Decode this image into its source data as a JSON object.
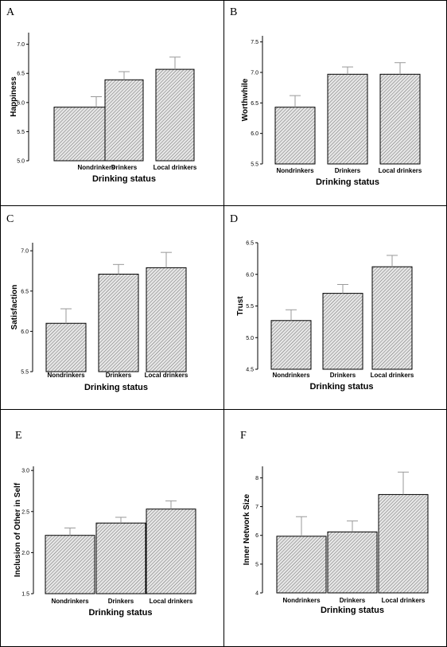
{
  "chart_data": [
    {
      "type": "bar",
      "panel_label": "A",
      "categories": [
        "Nondrinkers",
        "Drinkers",
        "Local drinkers"
      ],
      "values": [
        5.92,
        6.39,
        6.57
      ],
      "error_upper": [
        6.1,
        6.53,
        6.78
      ],
      "xlabel": "Drinking status",
      "ylabel": "Happiness",
      "ylim": [
        5.0,
        7.2
      ],
      "yticks": [
        5.0,
        5.5,
        6.0,
        6.5,
        7.0
      ],
      "ytick_labels": [
        "5.0",
        "5.5",
        "6.0",
        "6.5",
        "7.0"
      ]
    },
    {
      "type": "bar",
      "panel_label": "B",
      "categories": [
        "Nondrinkers",
        "Drinkers",
        "Local drinkers"
      ],
      "values": [
        6.43,
        6.97,
        6.97
      ],
      "error_upper": [
        6.62,
        7.09,
        7.16
      ],
      "xlabel": "Drinking status",
      "ylabel": "Worthwhile",
      "ylim": [
        5.5,
        7.6
      ],
      "yticks": [
        5.5,
        6.0,
        6.5,
        7.0,
        7.5
      ],
      "ytick_labels": [
        "5.5",
        "6.0",
        "6.5",
        "7.0",
        "7.5"
      ]
    },
    {
      "type": "bar",
      "panel_label": "C",
      "categories": [
        "Nondrinkers",
        "Drinkers",
        "Local drinkers"
      ],
      "values": [
        6.1,
        6.71,
        6.79
      ],
      "error_upper": [
        6.28,
        6.83,
        6.98
      ],
      "xlabel": "Drinking status",
      "ylabel": "Satisfaction",
      "ylim": [
        5.5,
        7.1
      ],
      "yticks": [
        5.5,
        6.0,
        6.5,
        7.0
      ],
      "ytick_labels": [
        "5.5",
        "6.0",
        "6.5",
        "7.0"
      ]
    },
    {
      "type": "bar",
      "panel_label": "D",
      "categories": [
        "Nondrinkers",
        "Drinkers",
        "Local drinkers"
      ],
      "values": [
        5.27,
        5.7,
        6.12
      ],
      "error_upper": [
        5.44,
        5.84,
        6.3
      ],
      "xlabel": "Drinking status",
      "ylabel": "Trust",
      "ylim": [
        4.5,
        6.5
      ],
      "yticks": [
        4.5,
        5.0,
        5.5,
        6.0,
        6.5
      ],
      "ytick_labels": [
        "4.5",
        "5.0",
        "5.5",
        "6.0",
        "6.5"
      ]
    },
    {
      "type": "bar",
      "panel_label": "E",
      "categories": [
        "Nondrinkers",
        "Drinkers",
        "Local drinkers"
      ],
      "values": [
        2.21,
        2.36,
        2.53
      ],
      "error_upper": [
        2.3,
        2.43,
        2.63
      ],
      "xlabel": "Drinking status",
      "ylabel": "Inclusion of Other in Self",
      "ylim": [
        1.5,
        3.05
      ],
      "yticks": [
        1.5,
        2.0,
        2.5,
        3.0
      ],
      "ytick_labels": [
        "1.5",
        "2.0",
        "2.5",
        "3.0"
      ]
    },
    {
      "type": "bar",
      "panel_label": "F",
      "categories": [
        "Nondrinkers",
        "Drinkers",
        "Local drinkers"
      ],
      "values": [
        5.97,
        6.12,
        7.42
      ],
      "error_upper": [
        6.65,
        6.5,
        8.2
      ],
      "xlabel": "Drinking status",
      "ylabel": "Inner Network Size",
      "ylim": [
        4.0,
        8.4
      ],
      "yticks": [
        4,
        5,
        6,
        7,
        8
      ],
      "ytick_labels": [
        "4",
        "5",
        "6",
        "7",
        "8"
      ]
    }
  ],
  "colors": {
    "bar_fill": "#e6e6e6",
    "hatch": "#777777",
    "error_bar": "#999999",
    "axis": "#000000"
  }
}
